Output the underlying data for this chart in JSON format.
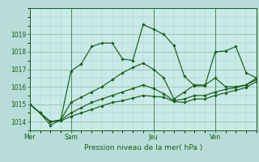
{
  "title": "Pression niveau de la mer( hPa )",
  "bg_color": "#b8ddd8",
  "plot_bg_color": "#c8eae8",
  "line_color": "#1a5c1a",
  "grid_color_major": "#88bb99",
  "grid_color_minor": "#aaccbb",
  "ylim": [
    1013.5,
    1020.2
  ],
  "yticks": [
    1014,
    1015,
    1016,
    1017,
    1018,
    1019
  ],
  "xtick_labels": [
    "Mer",
    "Sam",
    "Jeu",
    "Ven"
  ],
  "series": [
    {
      "x": [
        0,
        1,
        2,
        3,
        4,
        5,
        6,
        7,
        8,
        9,
        10,
        11,
        12,
        13,
        14,
        15,
        16,
        17,
        18,
        19,
        20,
        21,
        22
      ],
      "y": [
        1015.0,
        1014.5,
        1013.8,
        1014.1,
        1016.9,
        1017.3,
        1018.3,
        1018.5,
        1018.5,
        1017.6,
        1017.5,
        1019.55,
        1019.3,
        1019.0,
        1018.35,
        1016.6,
        1016.05,
        1016.05,
        1018.0,
        1018.05,
        1018.3,
        1016.8,
        1016.5
      ]
    },
    {
      "x": [
        0,
        1,
        2,
        3,
        4,
        5,
        6,
        7,
        8,
        9,
        10,
        11,
        12,
        13,
        14,
        15,
        16,
        17,
        18,
        19,
        20,
        21,
        22
      ],
      "y": [
        1015.0,
        1014.5,
        1014.0,
        1014.1,
        1015.1,
        1015.4,
        1015.7,
        1016.0,
        1016.4,
        1016.8,
        1017.1,
        1017.35,
        1017.0,
        1016.5,
        1015.3,
        1015.7,
        1016.1,
        1016.1,
        1016.5,
        1016.0,
        1016.0,
        1016.1,
        1016.5
      ]
    },
    {
      "x": [
        0,
        1,
        2,
        3,
        4,
        5,
        6,
        7,
        8,
        9,
        10,
        11,
        12,
        13,
        14,
        15,
        16,
        17,
        18,
        19,
        20,
        21,
        22
      ],
      "y": [
        1015.0,
        1014.5,
        1014.0,
        1014.1,
        1014.5,
        1014.8,
        1015.1,
        1015.3,
        1015.5,
        1015.7,
        1015.9,
        1016.1,
        1015.9,
        1015.6,
        1015.2,
        1015.3,
        1015.5,
        1015.5,
        1015.7,
        1015.85,
        1015.95,
        1016.1,
        1016.4
      ]
    },
    {
      "x": [
        0,
        1,
        2,
        3,
        4,
        5,
        6,
        7,
        8,
        9,
        10,
        11,
        12,
        13,
        14,
        15,
        16,
        17,
        18,
        19,
        20,
        21,
        22
      ],
      "y": [
        1015.0,
        1014.5,
        1014.0,
        1014.05,
        1014.3,
        1014.5,
        1014.7,
        1014.9,
        1015.1,
        1015.2,
        1015.35,
        1015.5,
        1015.45,
        1015.4,
        1015.15,
        1015.1,
        1015.3,
        1015.3,
        1015.5,
        1015.65,
        1015.8,
        1015.95,
        1016.3
      ]
    }
  ],
  "xtick_positions": [
    0,
    4,
    12,
    18
  ],
  "vline_positions": [
    0,
    4,
    12,
    18
  ]
}
